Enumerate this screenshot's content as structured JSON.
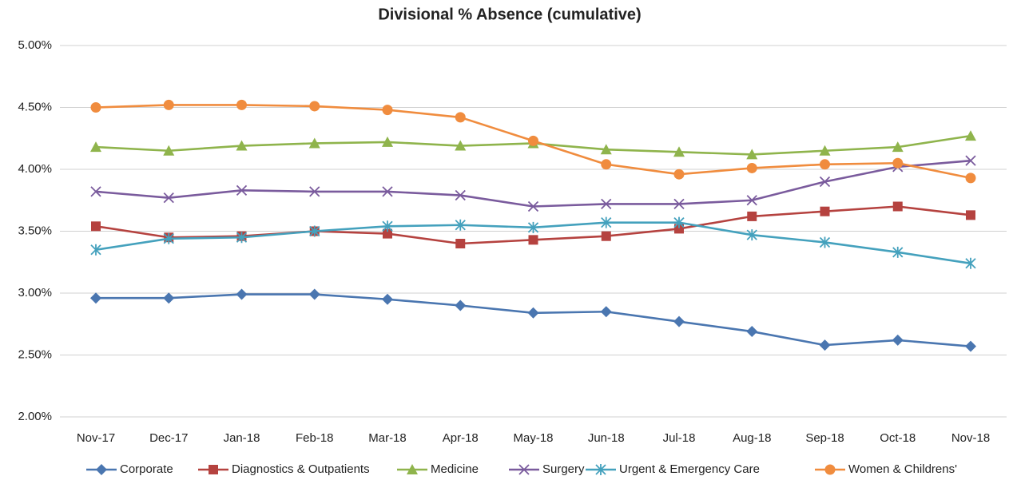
{
  "chart_data": {
    "type": "line",
    "title": "Divisional % Absence (cumulative)",
    "categories": [
      "Nov-17",
      "Dec-17",
      "Jan-18",
      "Feb-18",
      "Mar-18",
      "Apr-18",
      "May-18",
      "Jun-18",
      "Jul-18",
      "Aug-18",
      "Sep-18",
      "Oct-18",
      "Nov-18"
    ],
    "series": [
      {
        "name": "Corporate",
        "color": "#4a76b0",
        "marker": "diamond",
        "values": [
          2.96,
          2.96,
          2.99,
          2.99,
          2.95,
          2.9,
          2.84,
          2.85,
          2.77,
          2.69,
          2.58,
          2.62,
          2.57
        ]
      },
      {
        "name": "Diagnostics & Outpatients",
        "color": "#b5423f",
        "marker": "square",
        "values": [
          3.54,
          3.45,
          3.46,
          3.5,
          3.48,
          3.4,
          3.43,
          3.46,
          3.52,
          3.62,
          3.66,
          3.7,
          3.63
        ]
      },
      {
        "name": "Medicine",
        "color": "#8fb44c",
        "marker": "triangle",
        "values": [
          4.18,
          4.15,
          4.19,
          4.21,
          4.22,
          4.19,
          4.21,
          4.16,
          4.14,
          4.12,
          4.15,
          4.18,
          4.27
        ]
      },
      {
        "name": "Surgery",
        "color": "#7a5b9d",
        "marker": "x",
        "values": [
          3.82,
          3.77,
          3.83,
          3.82,
          3.82,
          3.79,
          3.7,
          3.72,
          3.72,
          3.75,
          3.9,
          4.02,
          4.07
        ]
      },
      {
        "name": "Urgent & Emergency Care",
        "color": "#44a1bd",
        "marker": "star",
        "values": [
          3.35,
          3.44,
          3.45,
          3.5,
          3.54,
          3.55,
          3.53,
          3.57,
          3.57,
          3.47,
          3.41,
          3.33,
          3.24
        ]
      },
      {
        "name": "Women & Childrens'",
        "color": "#f08c3e",
        "marker": "circle",
        "values": [
          4.5,
          4.52,
          4.52,
          4.51,
          4.48,
          4.42,
          4.23,
          4.04,
          3.96,
          4.01,
          4.04,
          4.05,
          3.93
        ]
      }
    ],
    "ylim": [
      2,
      5
    ],
    "yticks": [
      {
        "value": 2,
        "label": "2.00%"
      },
      {
        "value": 2.5,
        "label": "2.50%"
      },
      {
        "value": 3,
        "label": "3.00%"
      },
      {
        "value": 3.5,
        "label": "3.50%"
      },
      {
        "value": 4,
        "label": "4.00%"
      },
      {
        "value": 4.5,
        "label": "4.50%"
      },
      {
        "value": 5,
        "label": "5.00%"
      }
    ],
    "grid": true,
    "legend": "bottom"
  }
}
